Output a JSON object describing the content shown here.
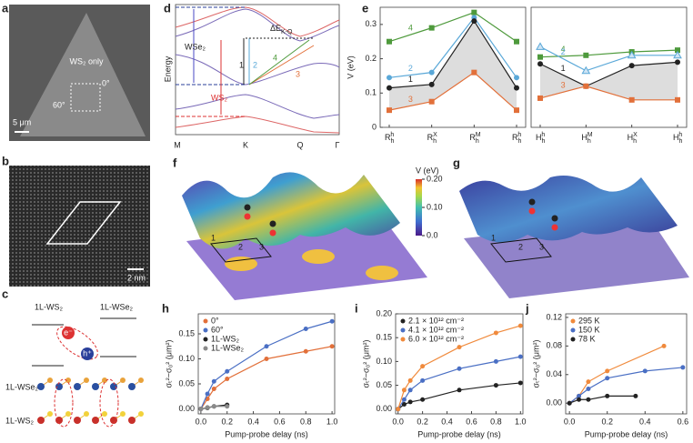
{
  "panel_labels": [
    "a",
    "b",
    "c",
    "d",
    "e",
    "f",
    "g",
    "h",
    "i",
    "j"
  ],
  "a": {
    "region": "WS₂ only",
    "angle_a": "0°",
    "angle_b": "60°",
    "scale": "5 μm"
  },
  "b": {
    "scale": "2 nm"
  },
  "c": {
    "top_left": "1L-WS₂",
    "top_right": "1L-WSe₂",
    "electron": "e⁻",
    "hole": "h⁺",
    "layer_top": "1L-WSe₂",
    "layer_bottom": "1L-WS₂"
  },
  "d": {
    "ylabel": "Energy",
    "band_a": "WSe₂",
    "band_b": "WS₂",
    "gap": {
      "base": "ΔE",
      "sub": "K-Q"
    },
    "transitions": [
      "1",
      "2",
      "3",
      "4"
    ],
    "kpoints": [
      "M",
      "K",
      "Q",
      "Γ"
    ]
  },
  "f": {
    "colorbar_title": "V (eV)",
    "clim": [
      0,
      0.2
    ],
    "colorbar_ticks": [
      {
        "value": 0.2,
        "label": "0.20"
      },
      {
        "value": 0.1,
        "label": "0.10"
      },
      {
        "value": 0,
        "label": "0.0"
      }
    ],
    "sites": [
      "1",
      "2",
      "3"
    ]
  },
  "g": {
    "sites": [
      "1",
      "2",
      "3"
    ]
  },
  "chart_data": [
    {
      "type": "line",
      "ylabel": "V (eV)",
      "ylim": [
        0,
        0.35
      ],
      "yticks": [
        0,
        0.1,
        0.2,
        0.3
      ],
      "categories": [
        {
          "base": "R",
          "sub": "h",
          "sup": "h"
        },
        {
          "base": "R",
          "sub": "h",
          "sup": "X"
        },
        {
          "base": "R",
          "sub": "h",
          "sup": "M"
        },
        {
          "base": "R",
          "sub": "h",
          "sup": "h"
        }
      ],
      "series": [
        {
          "name": "4",
          "color": "#4e9a3c",
          "marker": "square",
          "values": [
            0.25,
            0.29,
            0.335,
            0.25
          ]
        },
        {
          "name": "2",
          "color": "#5aa8d8",
          "marker": "circle",
          "values": [
            0.145,
            0.16,
            0.32,
            0.145
          ]
        },
        {
          "name": "1",
          "color": "#222222",
          "marker": "circle",
          "values": [
            0.115,
            0.125,
            0.31,
            0.115
          ]
        },
        {
          "name": "3",
          "color": "#e2703a",
          "marker": "square",
          "values": [
            0.05,
            0.075,
            0.16,
            0.05
          ]
        }
      ]
    },
    {
      "type": "line",
      "ylim": [
        0,
        0.35
      ],
      "categories": [
        {
          "base": "H",
          "sub": "h",
          "sup": "h"
        },
        {
          "base": "H",
          "sub": "h",
          "sup": "M"
        },
        {
          "base": "H",
          "sub": "h",
          "sup": "X"
        },
        {
          "base": "H",
          "sub": "h",
          "sup": "h"
        }
      ],
      "series": [
        {
          "name": "4",
          "color": "#4e9a3c",
          "marker": "square",
          "values": [
            0.205,
            0.21,
            0.22,
            0.225
          ]
        },
        {
          "name": "2",
          "color": "#5aa8d8",
          "marker": "triangle",
          "values": [
            0.235,
            0.165,
            0.21,
            0.21
          ]
        },
        {
          "name": "1",
          "color": "#222222",
          "marker": "circle",
          "values": [
            0.185,
            0.12,
            0.18,
            0.19
          ]
        },
        {
          "name": "3",
          "color": "#e2703a",
          "marker": "square",
          "values": [
            0.085,
            0.12,
            0.08,
            0.08
          ]
        }
      ]
    },
    {
      "type": "scatter",
      "xlabel": "Pump-probe delay (ns)",
      "ylabel": "σₜ²−σ₀² (μm²)",
      "legend": "upper left",
      "xlim": [
        -0.02,
        1.02
      ],
      "ylim": [
        -0.01,
        0.19
      ],
      "xticks": [
        {
          "value": 0,
          "label": "0.0"
        },
        0.2,
        0.4,
        0.6,
        0.8,
        {
          "value": 1,
          "label": "1.0"
        }
      ],
      "yticks": [
        {
          "value": 0,
          "label": "0.00"
        },
        0.05,
        {
          "value": 0.1,
          "label": "0.10"
        },
        0.15
      ],
      "series": [
        {
          "name": "0°",
          "color": "#e2703a",
          "x": [
            0,
            0.05,
            0.1,
            0.2,
            0.5,
            0.8,
            1.0
          ],
          "values": [
            0,
            0.02,
            0.04,
            0.06,
            0.1,
            0.115,
            0.125
          ]
        },
        {
          "name": "60°",
          "color": "#4a6fc4",
          "x": [
            0,
            0.05,
            0.1,
            0.2,
            0.5,
            0.8,
            1.0
          ],
          "values": [
            0,
            0.03,
            0.055,
            0.075,
            0.125,
            0.16,
            0.175
          ]
        },
        {
          "name": "1L-WS₂",
          "color": "#222222",
          "x": [
            0,
            0.05,
            0.1,
            0.2
          ],
          "values": [
            0,
            0.002,
            0.005,
            0.008
          ]
        },
        {
          "name": "1L-WSe₂",
          "color": "#8a8a8a",
          "x": [
            0,
            0.05,
            0.1,
            0.2
          ],
          "values": [
            0,
            0.003,
            0.005,
            0.005
          ]
        }
      ]
    },
    {
      "type": "scatter",
      "xlabel": "Pump-probe delay (ns)",
      "ylabel": "σₜ²−σ₀² (μm²)",
      "legend": "upper left",
      "xlim": [
        -0.02,
        1.02
      ],
      "ylim": [
        -0.01,
        0.2
      ],
      "xticks": [
        {
          "value": 0,
          "label": "0.0"
        },
        0.2,
        0.4,
        0.6,
        0.8,
        {
          "value": 1,
          "label": "1.0"
        }
      ],
      "yticks": [
        {
          "value": 0,
          "label": "0.00"
        },
        0.05,
        {
          "value": 0.1,
          "label": "0.10"
        },
        0.15,
        {
          "value": 0.2,
          "label": "0.20"
        }
      ],
      "series": [
        {
          "name": "2.1 × 10¹² cm⁻²",
          "color": "#222222",
          "x": [
            0,
            0.05,
            0.1,
            0.2,
            0.5,
            0.8,
            1.0
          ],
          "values": [
            0,
            0.01,
            0.015,
            0.02,
            0.04,
            0.05,
            0.055
          ]
        },
        {
          "name": "4.1 × 10¹² cm⁻²",
          "color": "#4a6fc4",
          "x": [
            0,
            0.05,
            0.1,
            0.2,
            0.5,
            0.8,
            1.0
          ],
          "values": [
            0,
            0.02,
            0.04,
            0.06,
            0.085,
            0.1,
            0.11
          ]
        },
        {
          "name": "6.0 × 10¹² cm⁻²",
          "color": "#f08a3c",
          "x": [
            0,
            0.05,
            0.1,
            0.2,
            0.5,
            0.8,
            1.0
          ],
          "values": [
            0,
            0.04,
            0.06,
            0.09,
            0.13,
            0.16,
            0.175
          ]
        }
      ]
    },
    {
      "type": "scatter",
      "xlabel": "Pump-probe delay (ns)",
      "ylabel": "σₜ²−σ₀² (μm²)",
      "legend": "upper left",
      "xlim": [
        -0.02,
        0.62
      ],
      "ylim": [
        -0.015,
        0.125
      ],
      "xticks": [
        {
          "value": 0,
          "label": "0.0"
        },
        0.2,
        0.4,
        0.6
      ],
      "yticks": [
        {
          "value": 0,
          "label": "0.00"
        },
        0.04,
        0.08,
        0.12
      ],
      "series": [
        {
          "name": "295 K",
          "color": "#f08a3c",
          "x": [
            0,
            0.05,
            0.1,
            0.2,
            0.5
          ],
          "values": [
            0,
            0.01,
            0.03,
            0.045,
            0.08
          ]
        },
        {
          "name": "150 K",
          "color": "#4a6fc4",
          "x": [
            0,
            0.05,
            0.1,
            0.2,
            0.4,
            0.6
          ],
          "values": [
            0,
            0.01,
            0.02,
            0.035,
            0.045,
            0.05
          ]
        },
        {
          "name": "78 K",
          "color": "#222222",
          "x": [
            0,
            0.05,
            0.1,
            0.2,
            0.35
          ],
          "values": [
            0,
            0.005,
            0.005,
            0.01,
            0.01
          ]
        }
      ]
    }
  ]
}
